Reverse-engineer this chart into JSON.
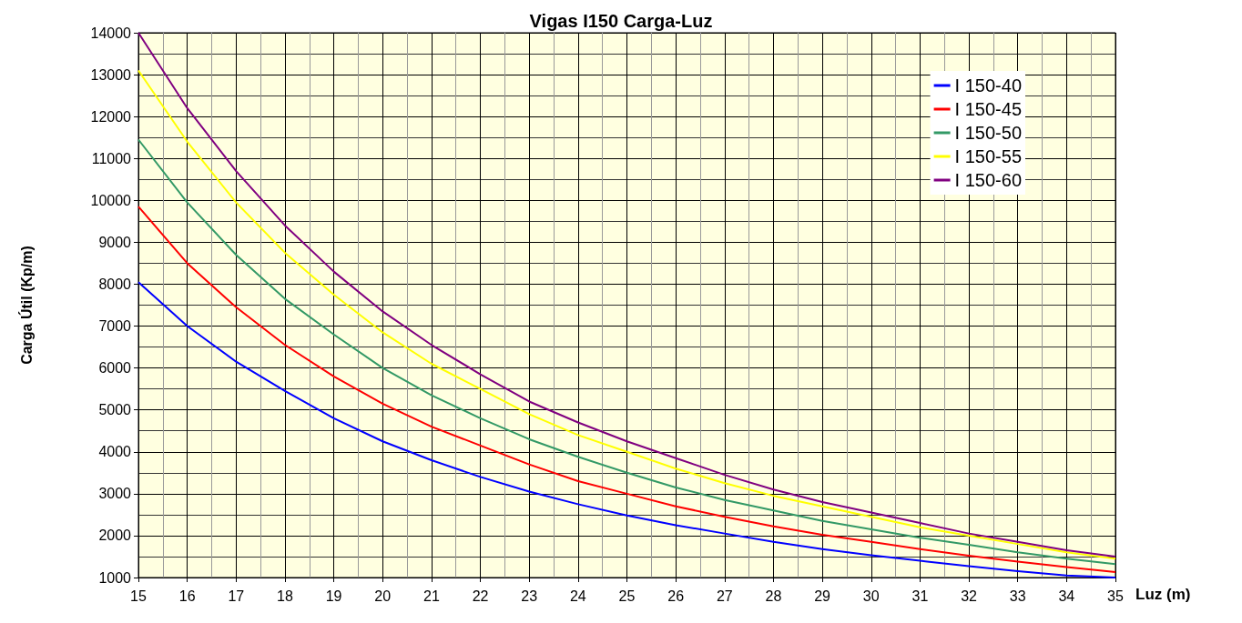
{
  "chart_data": {
    "type": "line",
    "title": "Vigas I150 Carga-Luz",
    "xlabel": "Luz (m)",
    "ylabel": "Carga Útil (Kp/m)",
    "x": [
      15,
      16,
      17,
      18,
      19,
      20,
      21,
      22,
      23,
      24,
      25,
      26,
      27,
      28,
      29,
      30,
      31,
      32,
      33,
      34,
      35
    ],
    "xlim": [
      15,
      35
    ],
    "xticks": [
      15,
      16,
      17,
      18,
      19,
      20,
      21,
      22,
      23,
      24,
      25,
      26,
      27,
      28,
      29,
      30,
      31,
      32,
      33,
      34,
      35
    ],
    "ylim": [
      1000,
      14000
    ],
    "yticks": [
      1000,
      2000,
      3000,
      4000,
      5000,
      6000,
      7000,
      8000,
      9000,
      10000,
      11000,
      12000,
      13000,
      14000
    ],
    "grid": true,
    "legend": "top right",
    "marker": "none",
    "line_style": "solid",
    "series": [
      {
        "name": "I 150-40",
        "color": "#0000ff",
        "values": [
          8050,
          7000,
          6150,
          5450,
          4800,
          4250,
          3800,
          3400,
          3050,
          2750,
          2480,
          2250,
          2050,
          1850,
          1680,
          1530,
          1400,
          1270,
          1150,
          1050,
          1000
        ]
      },
      {
        "name": "I 150-45",
        "color": "#ff0000",
        "values": [
          9850,
          8500,
          7450,
          6550,
          5800,
          5150,
          4600,
          4150,
          3700,
          3300,
          3000,
          2700,
          2450,
          2220,
          2020,
          1850,
          1680,
          1520,
          1380,
          1250,
          1130
        ]
      },
      {
        "name": "I 150-50",
        "color": "#339966",
        "values": [
          11450,
          9950,
          8700,
          7650,
          6800,
          6000,
          5350,
          4800,
          4300,
          3880,
          3500,
          3150,
          2850,
          2600,
          2350,
          2150,
          1950,
          1780,
          1600,
          1450,
          1320
        ]
      },
      {
        "name": "I 150-55",
        "color": "#ffff00",
        "values": [
          13100,
          11400,
          9950,
          8750,
          7750,
          6850,
          6100,
          5500,
          4900,
          4400,
          4000,
          3600,
          3250,
          2950,
          2700,
          2450,
          2200,
          2000,
          1800,
          1600,
          1450
        ]
      },
      {
        "name": "I 150-60",
        "color": "#800080",
        "values": [
          14000,
          12200,
          10700,
          9400,
          8300,
          7350,
          6550,
          5850,
          5200,
          4700,
          4250,
          3850,
          3450,
          3100,
          2800,
          2550,
          2300,
          2050,
          1850,
          1650,
          1500
        ]
      }
    ]
  }
}
